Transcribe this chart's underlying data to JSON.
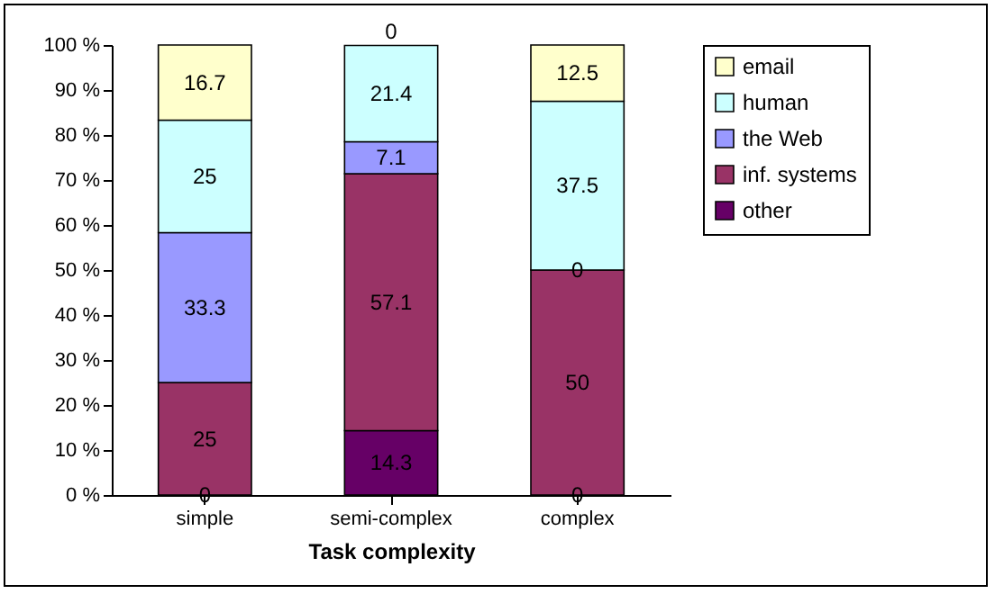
{
  "chart_data": {
    "type": "bar",
    "stacked": true,
    "xlabel": "Task complexity",
    "categories": [
      "simple",
      "semi-complex",
      "complex"
    ],
    "series": [
      {
        "name": "other",
        "color": "#660066",
        "values": [
          0,
          14.3,
          0
        ],
        "value_labels": [
          null,
          "14.3",
          null
        ]
      },
      {
        "name": "inf. systems",
        "color": "#993366",
        "values": [
          25,
          57.1,
          50
        ],
        "value_labels": [
          "25",
          "57.1",
          "50"
        ]
      },
      {
        "name": "the Web",
        "color": "#9999ff",
        "values": [
          33.3,
          7.1,
          0
        ],
        "value_labels": [
          "33.3",
          "7.1",
          null
        ]
      },
      {
        "name": "human",
        "color": "#ccffff",
        "values": [
          25,
          21.4,
          37.5
        ],
        "value_labels": [
          "25",
          "21.4",
          "37.5"
        ]
      },
      {
        "name": "email",
        "color": "#ffffcc",
        "values": [
          16.7,
          0,
          12.5
        ],
        "value_labels": [
          "16.7",
          "0",
          "12.5"
        ]
      }
    ],
    "ylim": [
      0,
      100
    ],
    "yticks": [
      {
        "value": 0,
        "label": "0 %"
      },
      {
        "value": 10,
        "label": "10 %"
      },
      {
        "value": 20,
        "label": "20 %"
      },
      {
        "value": 30,
        "label": "30 %"
      },
      {
        "value": 40,
        "label": "40 %"
      },
      {
        "value": 50,
        "label": "50 %"
      },
      {
        "value": 60,
        "label": "60 %"
      },
      {
        "value": 70,
        "label": "70 %"
      },
      {
        "value": 80,
        "label": "80 %"
      },
      {
        "value": 90,
        "label": "90 %"
      },
      {
        "value": 100,
        "label": "100 %"
      }
    ],
    "annotations": [
      {
        "text": "0",
        "x": "simple",
        "y": 0
      },
      {
        "text": "0",
        "x": "complex",
        "y": 0
      },
      {
        "text": "0",
        "x": "complex",
        "y": 50
      }
    ],
    "legend": "right",
    "grid": false
  }
}
